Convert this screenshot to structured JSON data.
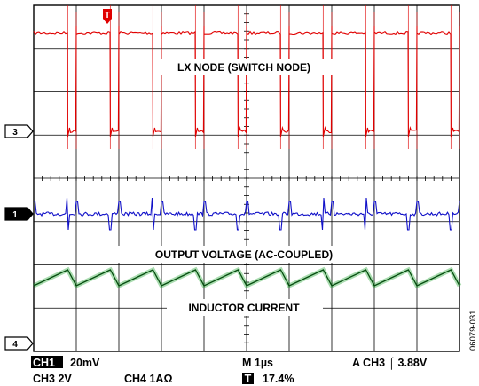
{
  "chart_data": {
    "type": "line",
    "title": "",
    "grid": true,
    "grid_divisions": {
      "x": 10,
      "y": 8
    },
    "annotations": [
      {
        "id": "lx",
        "text": "LX NODE (SWITCH NODE)"
      },
      {
        "id": "vout",
        "text": "OUTPUT VOLTAGE (AC-COUPLED)"
      },
      {
        "id": "il",
        "text": "INDUCTOR CURRENT"
      }
    ],
    "channel_markers": [
      {
        "id": "ch3",
        "label": "3"
      },
      {
        "id": "ch1",
        "label": "1"
      },
      {
        "id": "ch4",
        "label": "4"
      }
    ],
    "trigger_marker": "T",
    "switching_cycles": 10,
    "duty_cycle_percent": 20,
    "readouts": {
      "ch1_tag": "CH1",
      "ch1_scale": "20mV",
      "ch3": "CH3  2V",
      "ch4": "CH4  1AΩ",
      "m": "M  1µs",
      "trigger": "A  CH3  ⌠  3.88V",
      "t_tag": "T",
      "t_pos": "17.4%"
    },
    "figure_id": "06079-031",
    "series": [
      {
        "color": "#e00000",
        "channel": 3,
        "shape": "switch-node square wave"
      },
      {
        "color": "#1010c8",
        "channel": 1,
        "shape": "output ripple with switching spikes"
      },
      {
        "color": "#0a9a1a",
        "channel": 4,
        "shape": "inductor current triangle"
      }
    ]
  }
}
